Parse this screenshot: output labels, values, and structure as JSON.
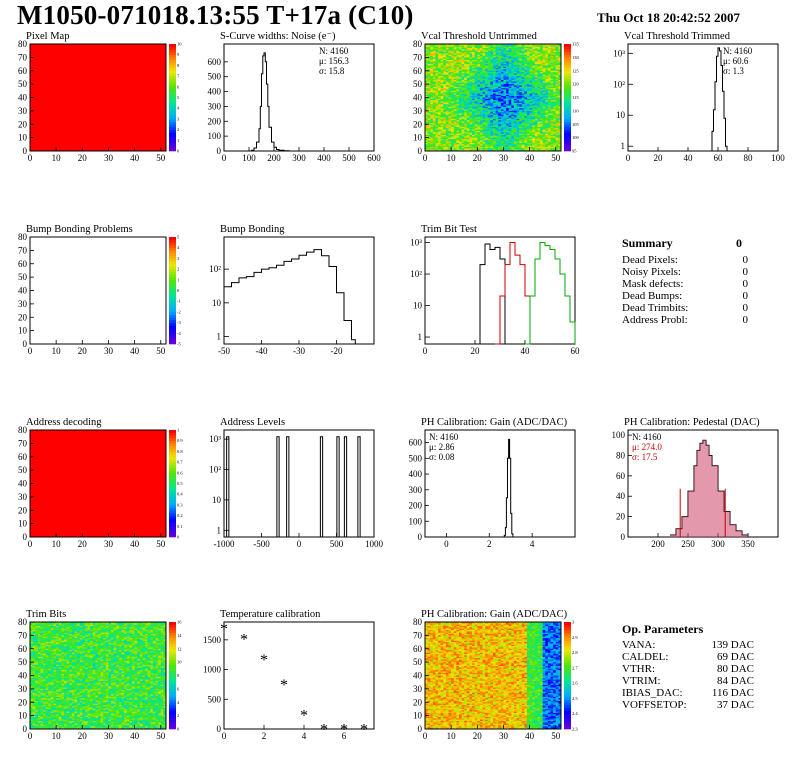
{
  "header": {
    "title": "M1050-071018.13:55 T+17a (C10)",
    "date": "Thu Oct 18 20:42:52 2007"
  },
  "summary": {
    "title": "Summary",
    "total": "0",
    "rows": [
      {
        "label": "Dead Pixels:",
        "value": "0"
      },
      {
        "label": "Noisy Pixels:",
        "value": "0"
      },
      {
        "label": "Mask defects:",
        "value": "0"
      },
      {
        "label": "Dead Bumps:",
        "value": "0"
      },
      {
        "label": "Dead Trimbits:",
        "value": "0"
      },
      {
        "label": "Address Probl:",
        "value": "0"
      }
    ]
  },
  "op_parameters": {
    "title": "Op. Parameters",
    "rows": [
      {
        "label": "VANA:",
        "value": "139 DAC"
      },
      {
        "label": "CALDEL:",
        "value": "69 DAC"
      },
      {
        "label": "VTHR:",
        "value": "80 DAC"
      },
      {
        "label": "VTRIM:",
        "value": "84 DAC"
      },
      {
        "label": "IBIAS_DAC:",
        "value": "116 DAC"
      },
      {
        "label": "VOFFSETOP:",
        "value": "37 DAC"
      }
    ]
  },
  "chart_data": [
    {
      "id": "pixel_map",
      "type": "heatmap",
      "title": "Pixel Map",
      "xlim": [
        0,
        52
      ],
      "ylim": [
        0,
        80
      ],
      "xticks": [
        0,
        10,
        20,
        30,
        40,
        50
      ],
      "yticks": [
        0,
        10,
        20,
        30,
        40,
        50,
        60,
        70,
        80
      ],
      "pattern": "uniform",
      "uniform_value": 10,
      "zlim": [
        0,
        10
      ],
      "palette_ticks": [
        0,
        1,
        2,
        3,
        4,
        5,
        6,
        7,
        8,
        9,
        10
      ]
    },
    {
      "id": "scurve_noise",
      "type": "line",
      "title": "S-Curve widths: Noise (e⁻)",
      "xlim": [
        0,
        600
      ],
      "ylim": [
        0,
        720
      ],
      "xticks": [
        0,
        100,
        200,
        300,
        400,
        500,
        600
      ],
      "yticks": [
        0,
        100,
        200,
        300,
        400,
        500,
        600
      ],
      "stats": [
        "N: 4160",
        "μ: 156.3",
        "σ: 15.8"
      ],
      "x": [
        100,
        110,
        120,
        130,
        140,
        145,
        150,
        155,
        160,
        165,
        170,
        175,
        180,
        190,
        200,
        210,
        220,
        240,
        260
      ],
      "values": [
        0,
        5,
        20,
        60,
        150,
        300,
        520,
        640,
        660,
        600,
        450,
        300,
        160,
        60,
        25,
        10,
        5,
        2,
        0
      ]
    },
    {
      "id": "vcal_untrimmed",
      "type": "heatmap",
      "title": "Vcal Threshold Untrimmed",
      "xlim": [
        0,
        52
      ],
      "ylim": [
        0,
        80
      ],
      "xticks": [
        0,
        10,
        20,
        30,
        40,
        50
      ],
      "yticks": [
        0,
        10,
        20,
        30,
        40,
        50,
        60,
        70,
        80
      ],
      "pattern": "noisy_center_blue",
      "zlim": [
        95,
        135
      ],
      "palette_ticks": [
        95,
        100,
        105,
        110,
        115,
        120,
        125,
        130,
        135
      ]
    },
    {
      "id": "vcal_trimmed",
      "type": "line",
      "title": "Vcal Threshold Trimmed",
      "log": true,
      "xlim": [
        0,
        100
      ],
      "ylim": [
        0.7,
        2000
      ],
      "xticks": [
        0,
        20,
        40,
        60,
        80,
        100
      ],
      "stats": [
        "N: 4160",
        "μ: 60.6",
        "σ: 1.3"
      ],
      "x": [
        55,
        56,
        57,
        58,
        59,
        60,
        61,
        62,
        63,
        64,
        65,
        66
      ],
      "values": [
        0.7,
        3,
        15,
        120,
        800,
        1500,
        1200,
        400,
        60,
        8,
        1,
        0.7
      ]
    },
    {
      "id": "bump_bonding_problems",
      "type": "heatmap",
      "title": "Bump Bonding Problems",
      "xlim": [
        0,
        52
      ],
      "ylim": [
        0,
        80
      ],
      "xticks": [
        0,
        10,
        20,
        30,
        40,
        50
      ],
      "yticks": [
        0,
        10,
        20,
        30,
        40,
        50,
        60,
        70,
        80
      ],
      "pattern": "empty",
      "zlim": [
        -5,
        5
      ],
      "palette_ticks": [
        -5,
        -4,
        -3,
        -2,
        -1,
        0,
        1,
        2,
        3,
        4,
        5
      ]
    },
    {
      "id": "bump_bonding",
      "type": "line",
      "title": "Bump Bonding",
      "log": true,
      "xlim": [
        -50,
        -10
      ],
      "ylim": [
        0.6,
        900
      ],
      "xticks": [
        -50,
        -40,
        -30,
        -20
      ],
      "x": [
        -50,
        -48,
        -46,
        -44,
        -42,
        -40,
        -38,
        -36,
        -34,
        -32,
        -30,
        -28,
        -26,
        -24,
        -22,
        -20,
        -18,
        -16,
        -15
      ],
      "values": [
        30,
        40,
        55,
        60,
        80,
        100,
        110,
        130,
        170,
        200,
        260,
        320,
        380,
        250,
        120,
        20,
        3,
        0.8,
        0.6
      ]
    },
    {
      "id": "trim_bit_test",
      "type": "line",
      "title": "Trim Bit Test",
      "log": true,
      "xlim": [
        0,
        60
      ],
      "ylim": [
        0.6,
        1500
      ],
      "xticks": [
        0,
        20,
        40,
        60
      ],
      "series": [
        {
          "color": "#000000",
          "x": [
            20,
            22,
            24,
            26,
            28,
            30,
            32
          ],
          "values": [
            0.6,
            200,
            900,
            600,
            700,
            300,
            0.6
          ]
        },
        {
          "color": "#cc0000",
          "x": [
            28,
            30,
            32,
            34,
            36,
            38,
            40,
            42
          ],
          "values": [
            0.6,
            20,
            200,
            1000,
            400,
            200,
            20,
            0.6
          ]
        },
        {
          "color": "#00aa00",
          "x": [
            40,
            42,
            44,
            46,
            48,
            50,
            52,
            54,
            56,
            58,
            60
          ],
          "values": [
            0.6,
            20,
            300,
            1000,
            800,
            600,
            300,
            100,
            20,
            3,
            0.6
          ]
        }
      ]
    },
    {
      "id": "address_decoding",
      "type": "heatmap",
      "title": "Address decoding",
      "xlim": [
        0,
        52
      ],
      "ylim": [
        0,
        80
      ],
      "xticks": [
        0,
        10,
        20,
        30,
        40,
        50
      ],
      "yticks": [
        0,
        10,
        20,
        30,
        40,
        50,
        60,
        70,
        80
      ],
      "pattern": "uniform",
      "uniform_value": 1,
      "zlim": [
        0,
        1
      ],
      "palette_ticks": [
        0,
        0.1,
        0.2,
        0.3,
        0.4,
        0.5,
        0.6,
        0.7,
        0.8,
        0.9,
        1
      ]
    },
    {
      "id": "address_levels",
      "type": "line",
      "title": "Address Levels",
      "log": true,
      "xlim": [
        -1000,
        1000
      ],
      "ylim": [
        0.6,
        2000
      ],
      "xticks": [
        -1000,
        -500,
        0,
        500,
        1000
      ],
      "peaks": [
        -950,
        -280,
        -150,
        300,
        520,
        620,
        800
      ],
      "peak_height": 1200
    },
    {
      "id": "ph_gain",
      "type": "line",
      "title": "PH Calibration: Gain (ADC/DAC)",
      "xlim": [
        -1,
        6
      ],
      "ylim": [
        0,
        680
      ],
      "xticks": [
        0,
        2,
        4
      ],
      "yticks": [
        0,
        100,
        200,
        300,
        400,
        500,
        600
      ],
      "stats": [
        "N: 4160",
        "μ: 2.86",
        "σ: 0.08"
      ],
      "x": [
        2.6,
        2.7,
        2.75,
        2.8,
        2.85,
        2.9,
        2.95,
        3.0,
        3.05,
        3.1
      ],
      "values": [
        0,
        10,
        60,
        250,
        500,
        620,
        500,
        150,
        20,
        0
      ]
    },
    {
      "id": "ph_pedestal",
      "type": "line",
      "title": "PH Calibration: Pedestal (DAC)",
      "xlim": [
        150,
        400
      ],
      "ylim": [
        0,
        105
      ],
      "xticks": [
        200,
        250,
        300,
        350
      ],
      "yticks": [
        0,
        20,
        40,
        60,
        80,
        100
      ],
      "stats": [
        "N: 4160",
        "μ: 274.0",
        "σ: 17.5"
      ],
      "stats_color": [
        "#000000",
        "#cc0000",
        "#cc0000"
      ],
      "x": [
        220,
        230,
        240,
        250,
        260,
        265,
        270,
        275,
        280,
        285,
        290,
        300,
        310,
        320,
        330,
        340,
        350
      ],
      "values": [
        2,
        8,
        20,
        45,
        70,
        85,
        92,
        95,
        90,
        80,
        70,
        45,
        25,
        12,
        6,
        2,
        1
      ],
      "fit_range": [
        237,
        312
      ]
    },
    {
      "id": "trim_bits",
      "type": "heatmap",
      "title": "Trim Bits",
      "xlim": [
        0,
        52
      ],
      "ylim": [
        0,
        80
      ],
      "xticks": [
        0,
        10,
        20,
        30,
        40,
        50
      ],
      "yticks": [
        0,
        10,
        20,
        30,
        40,
        50,
        60,
        70,
        80
      ],
      "pattern": "noisy_green",
      "zlim": [
        0,
        16
      ],
      "palette_ticks": [
        0,
        2,
        4,
        6,
        8,
        10,
        12,
        14,
        16
      ]
    },
    {
      "id": "temperature_calibration",
      "type": "scatter",
      "title": "Temperature calibration",
      "xlim": [
        0,
        7.5
      ],
      "ylim": [
        0,
        1800
      ],
      "xticks": [
        0,
        2,
        4,
        6
      ],
      "yticks": [
        0,
        500,
        1000,
        1500
      ],
      "x": [
        0,
        1,
        2,
        3,
        4,
        5,
        6,
        7
      ],
      "values": [
        1700,
        1520,
        1180,
        760,
        240,
        10,
        10,
        10
      ]
    },
    {
      "id": "ph_gain_map",
      "type": "heatmap",
      "title": "PH Calibration: Gain (ADC/DAC)",
      "xlim": [
        0,
        52
      ],
      "ylim": [
        0,
        80
      ],
      "xticks": [
        0,
        10,
        20,
        30,
        40,
        50
      ],
      "yticks": [
        0,
        10,
        20,
        30,
        40,
        50,
        60,
        70,
        80
      ],
      "pattern": "noisy_red",
      "zlim": [
        2.3,
        3.0
      ],
      "palette_ticks": [
        2.3,
        2.4,
        2.5,
        2.6,
        2.7,
        2.8,
        2.9,
        3.0
      ]
    }
  ]
}
